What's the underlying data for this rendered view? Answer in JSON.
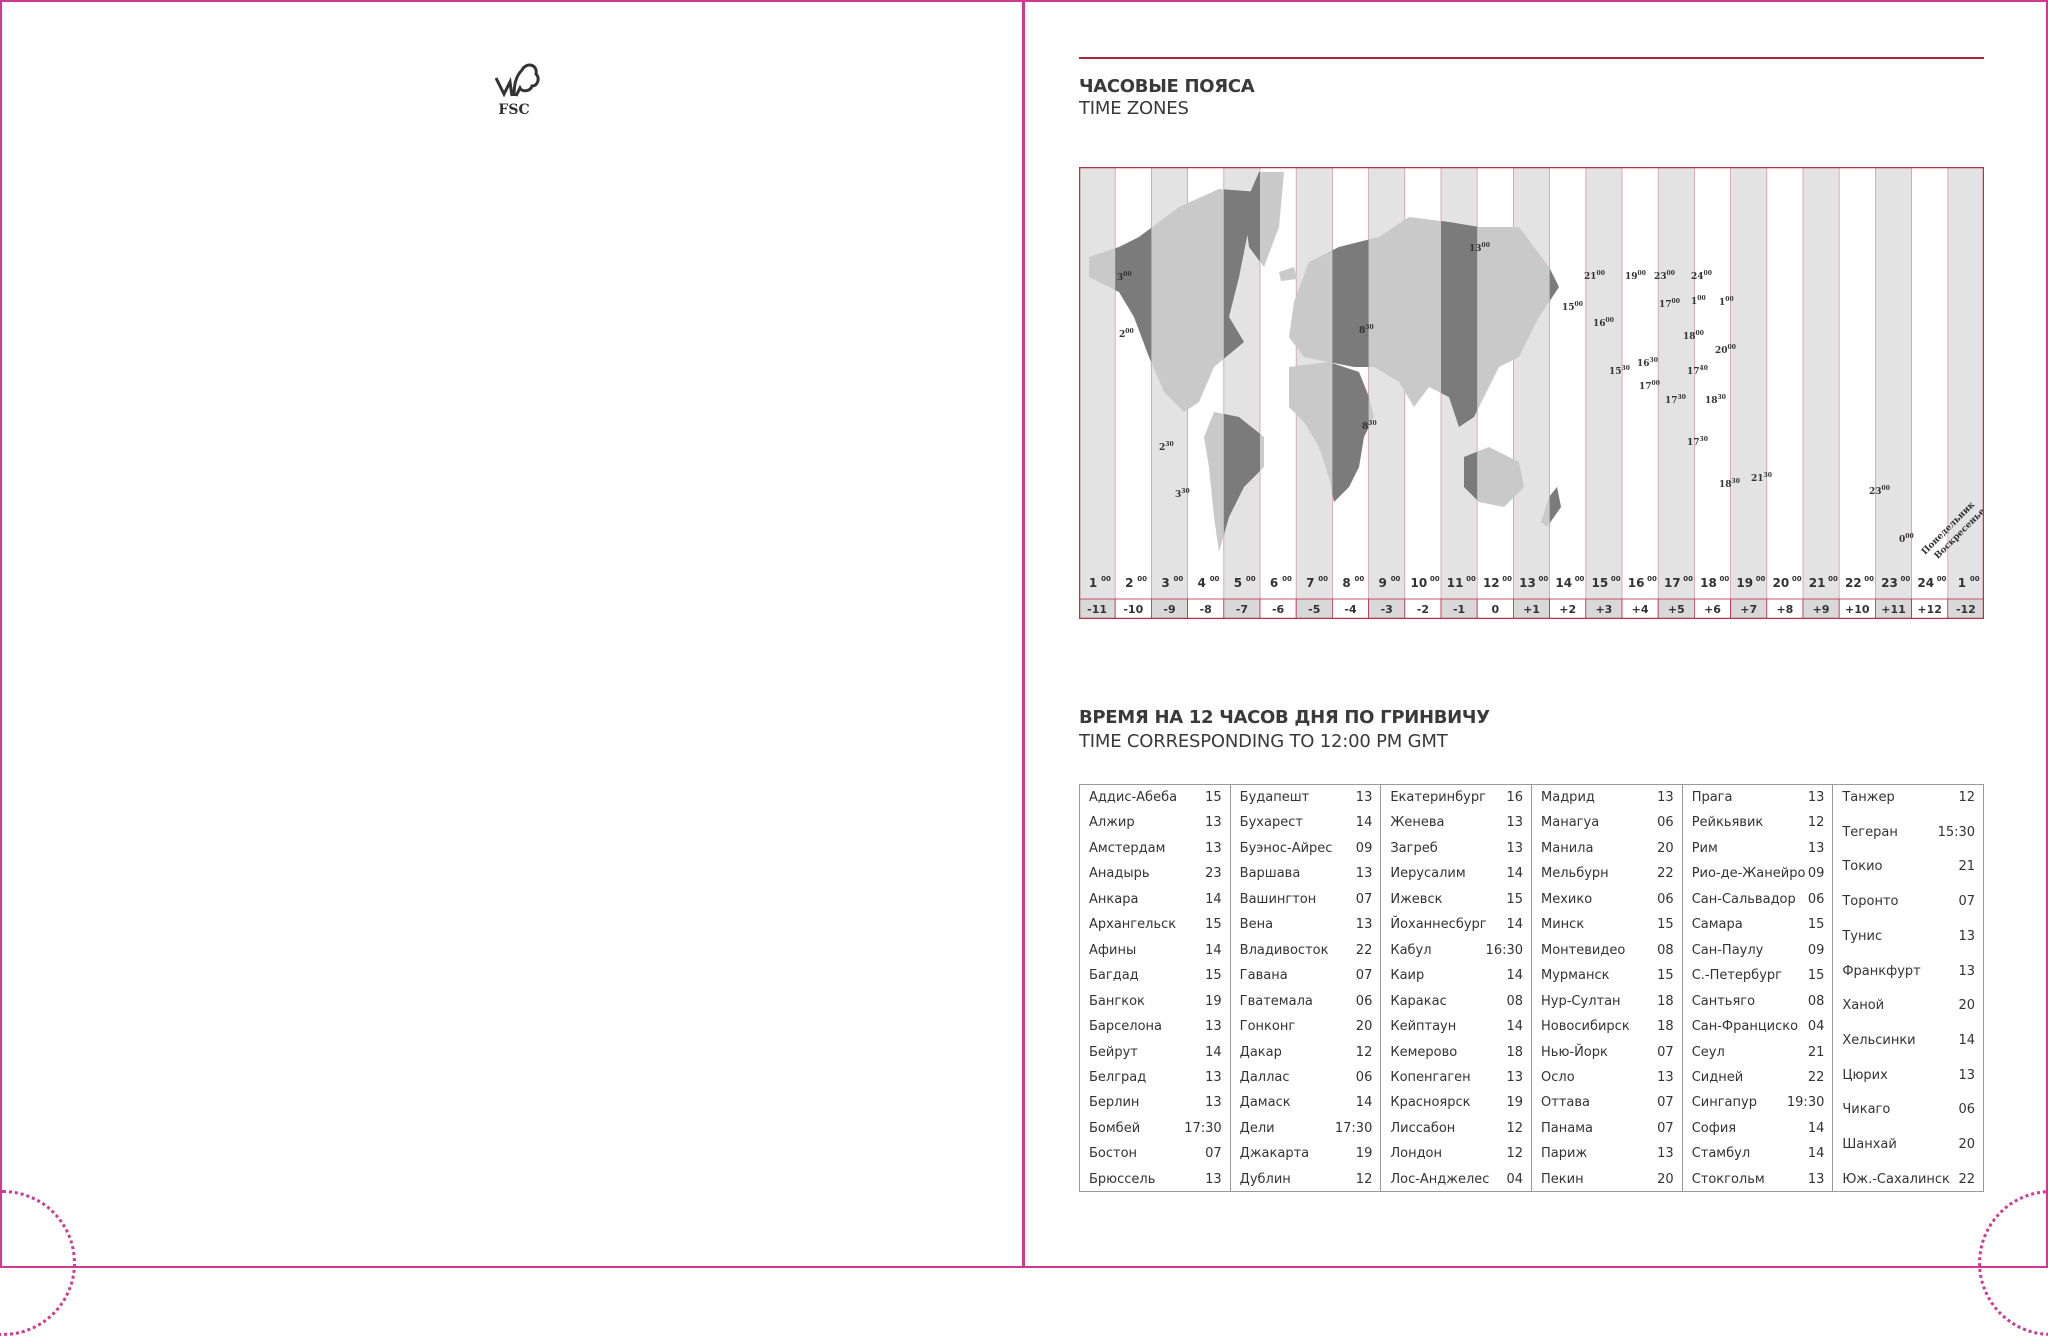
{
  "left_page": {
    "logo": "FSC"
  },
  "right_page": {
    "section1": {
      "title_ru": "ЧАСОВЫЕ ПОЯСА",
      "title_en": "TIME ZONES"
    },
    "map": {
      "hour_labels": [
        "1",
        "2",
        "3",
        "4",
        "5",
        "6",
        "7",
        "8",
        "9",
        "10",
        "11",
        "12",
        "13",
        "14",
        "15",
        "16",
        "17",
        "18",
        "19",
        "20",
        "21",
        "22",
        "23",
        "24",
        "1"
      ],
      "offsets": [
        "-11",
        "-10",
        "-9",
        "-8",
        "-7",
        "-6",
        "-5",
        "-4",
        "-3",
        "-2",
        "-1",
        "0",
        "+1",
        "+2",
        "+3",
        "+4",
        "+5",
        "+6",
        "+7",
        "+8",
        "+9",
        "+10",
        "+11",
        "+12",
        "-12"
      ],
      "zone_labels": [
        "3",
        "2",
        "2 30",
        "3 30",
        "8 30",
        "8 30",
        "13",
        "15",
        "16",
        "17",
        "19",
        "21",
        "23",
        "24",
        "1",
        "1",
        "18",
        "20",
        "15 30",
        "16 30",
        "17 40",
        "17",
        "17 30",
        "18 30",
        "17 30",
        "18 30",
        "21 30",
        "23",
        "0"
      ],
      "dateline_labels": [
        "Понедельник",
        "Воскресенье"
      ],
      "colors": {
        "land": "#c9c9c9",
        "land_dark": "#7b7b7b",
        "stripe": "#e3e3e3",
        "border": "#b8324a"
      }
    },
    "section2": {
      "title_ru": "ВРЕМЯ НА 12 ЧАСОВ ДНЯ ПО ГРИНВИЧУ",
      "title_en": "TIME CORRESPONDING TO 12:00 PM GMT"
    },
    "table": [
      [
        [
          "Аддис-Абеба",
          "15"
        ],
        [
          "Алжир",
          "13"
        ],
        [
          "Амстердам",
          "13"
        ],
        [
          "Анадырь",
          "23"
        ],
        [
          "Анкара",
          "14"
        ],
        [
          "Архангельск",
          "15"
        ],
        [
          "Афины",
          "14"
        ],
        [
          "Багдад",
          "15"
        ],
        [
          "Бангкок",
          "19"
        ],
        [
          "Барселона",
          "13"
        ],
        [
          "Бейрут",
          "14"
        ],
        [
          "Белград",
          "13"
        ],
        [
          "Берлин",
          "13"
        ],
        [
          "Бомбей",
          "17:30"
        ],
        [
          "Бостон",
          "07"
        ],
        [
          "Брюссель",
          "13"
        ]
      ],
      [
        [
          "Будапешт",
          "13"
        ],
        [
          "Бухарест",
          "14"
        ],
        [
          "Буэнос-Айрес",
          "09"
        ],
        [
          "Варшава",
          "13"
        ],
        [
          "Вашингтон",
          "07"
        ],
        [
          "Вена",
          "13"
        ],
        [
          "Владивосток",
          "22"
        ],
        [
          "Гавана",
          "07"
        ],
        [
          "Гватемала",
          "06"
        ],
        [
          "Гонконг",
          "20"
        ],
        [
          "Дакар",
          "12"
        ],
        [
          "Даллас",
          "06"
        ],
        [
          "Дамаск",
          "14"
        ],
        [
          "Дели",
          "17:30"
        ],
        [
          "Джакарта",
          "19"
        ],
        [
          "Дублин",
          "12"
        ]
      ],
      [
        [
          "Екатеринбург",
          "16"
        ],
        [
          "Женева",
          "13"
        ],
        [
          "Загреб",
          "13"
        ],
        [
          "Иерусалим",
          "14"
        ],
        [
          "Ижевск",
          "15"
        ],
        [
          "Йоханнесбург",
          "14"
        ],
        [
          "Кабул",
          "16:30"
        ],
        [
          "Каир",
          "14"
        ],
        [
          "Каракас",
          "08"
        ],
        [
          "Кейптаун",
          "14"
        ],
        [
          "Кемерово",
          "18"
        ],
        [
          "Копенгаген",
          "13"
        ],
        [
          "Красноярск",
          "19"
        ],
        [
          "Лиссабон",
          "12"
        ],
        [
          "Лондон",
          "12"
        ],
        [
          "Лос-Анджелес",
          "04"
        ]
      ],
      [
        [
          "Мадрид",
          "13"
        ],
        [
          "Манагуа",
          "06"
        ],
        [
          "Манила",
          "20"
        ],
        [
          "Мельбурн",
          "22"
        ],
        [
          "Мехико",
          "06"
        ],
        [
          "Минск",
          "15"
        ],
        [
          "Монтевидео",
          "08"
        ],
        [
          "Мурманск",
          "15"
        ],
        [
          "Нур-Султан",
          "18"
        ],
        [
          "Новосибирск",
          "18"
        ],
        [
          "Нью-Йорк",
          "07"
        ],
        [
          "Осло",
          "13"
        ],
        [
          "Оттава",
          "07"
        ],
        [
          "Панама",
          "07"
        ],
        [
          "Париж",
          "13"
        ],
        [
          "Пекин",
          "20"
        ]
      ],
      [
        [
          "Прага",
          "13"
        ],
        [
          "Рейкьявик",
          "12"
        ],
        [
          "Рим",
          "13"
        ],
        [
          "Рио-де-Жанейро",
          "09"
        ],
        [
          "Сан-Сальвадор",
          "06"
        ],
        [
          "Самара",
          "15"
        ],
        [
          "Сан-Паулу",
          "09"
        ],
        [
          "С.-Петербург",
          "15"
        ],
        [
          "Сантьяго",
          "08"
        ],
        [
          "Сан-Франциско",
          "04"
        ],
        [
          "Сеул",
          "21"
        ],
        [
          "Сидней",
          "22"
        ],
        [
          "Сингапур",
          "19:30"
        ],
        [
          "София",
          "14"
        ],
        [
          "Стамбул",
          "14"
        ],
        [
          "Стокгольм",
          "13"
        ]
      ],
      [
        [
          "Танжер",
          "12"
        ],
        [
          "Тегеран",
          "15:30"
        ],
        [
          "Токио",
          "21"
        ],
        [
          "Торонто",
          "07"
        ],
        [
          "Тунис",
          "13"
        ],
        [
          "Франкфурт",
          "13"
        ],
        [
          "Ханой",
          "20"
        ],
        [
          "Хельсинки",
          "14"
        ],
        [
          "Цюрих",
          "13"
        ],
        [
          "Чикаго",
          "06"
        ],
        [
          "Шанхай",
          "20"
        ],
        [
          "Юж.-Сахалинск",
          "22"
        ]
      ]
    ]
  }
}
